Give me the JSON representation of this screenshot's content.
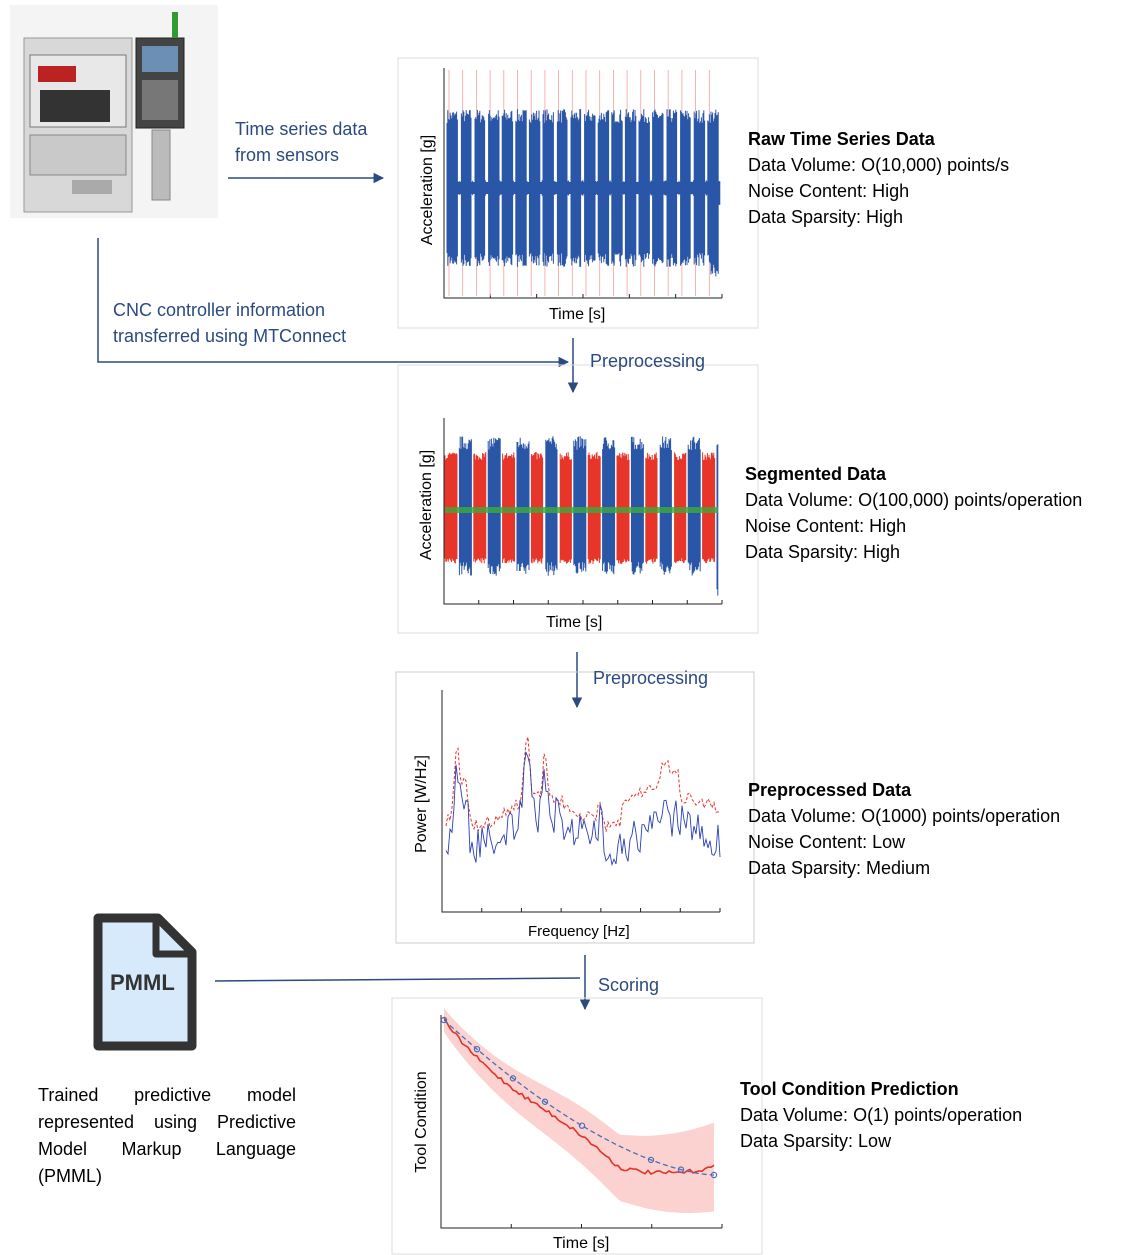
{
  "flow": {
    "sensor_label": "Time series data from sensors",
    "controller_label": "CNC controller information transferred using MTConnect",
    "step_1": "Preprocessing",
    "step_2": "Preprocessing",
    "step_3": "Scoring"
  },
  "panels": [
    {
      "x_label": "Time [s]",
      "y_label": "Acceleration [g]",
      "title": "Raw Time Series Data",
      "properties": [
        "Data Volume: O(10,000) points/s",
        "Noise Content: High",
        "Data Sparsity: High"
      ]
    },
    {
      "x_label": "Time [s]",
      "y_label": "Acceleration [g]",
      "title": "Segmented Data",
      "properties": [
        "Data Volume: O(100,000) points/operation",
        "Noise Content: High",
        "Data Sparsity: High"
      ]
    },
    {
      "x_label": "Frequency [Hz]",
      "y_label": "Power [W/Hz]",
      "title": "Preprocessed Data",
      "properties": [
        "Data Volume: O(1000) points/operation",
        "Noise Content: Low",
        "Data Sparsity: Medium"
      ]
    },
    {
      "x_label": "Time [s]",
      "y_label": "Tool Condition",
      "title": "Tool Condition Prediction",
      "properties": [
        "Data Volume: O(1) points/operation",
        "Data Sparsity: Low"
      ]
    }
  ],
  "model": {
    "icon_label": "PMML",
    "caption": "Trained predictive model represented using Predictive Model Markup Language (PMML)"
  }
}
